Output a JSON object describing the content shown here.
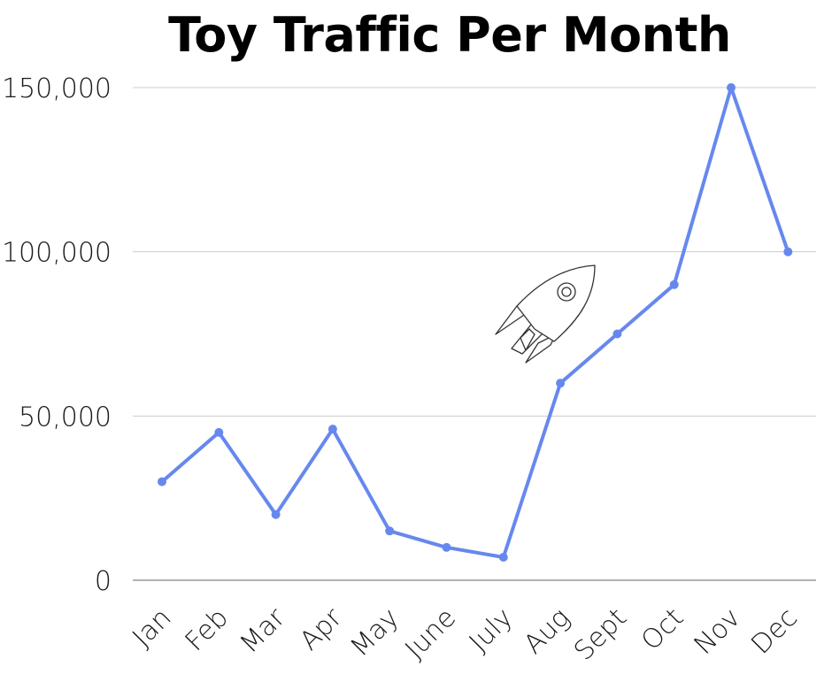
{
  "chart_data": {
    "type": "line",
    "title": "Toy Traffic Per Month",
    "xlabel": "",
    "ylabel": "",
    "categories": [
      "Jan",
      "Feb",
      "Mar",
      "Apr",
      "May",
      "June",
      "July",
      "Aug",
      "Sept",
      "Oct",
      "Nov",
      "Dec"
    ],
    "series": [
      {
        "values": [
          30000,
          45000,
          20000,
          46000,
          15000,
          10000,
          7000,
          60000,
          75000,
          90000,
          150000,
          100000
        ]
      }
    ],
    "ylim": [
      0,
      150000
    ],
    "yticks": [
      "0",
      "50,000",
      "100,000",
      "150,000"
    ],
    "grid": true,
    "legend": "none",
    "line_color": "#6688ee",
    "grid_color": "#cccccc",
    "decoration_icon": "rocket-icon"
  }
}
